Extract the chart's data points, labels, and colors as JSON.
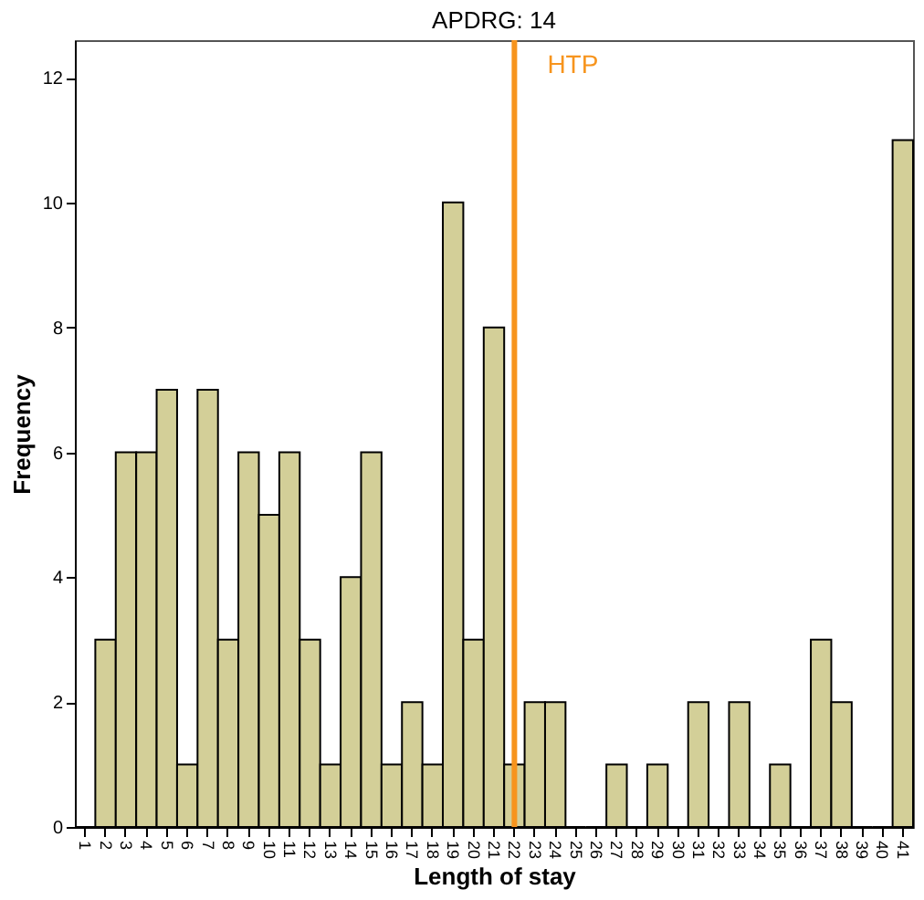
{
  "chart_data": {
    "type": "bar",
    "title": "APDRG: 14",
    "xlabel": "Length of stay",
    "ylabel": "Frequency",
    "categories": [
      "1",
      "2",
      "3",
      "4",
      "5",
      "6",
      "7",
      "8",
      "9",
      "10",
      "11",
      "12",
      "13",
      "14",
      "15",
      "16",
      "17",
      "18",
      "19",
      "20",
      "21",
      "22",
      "23",
      "24",
      "25",
      "26",
      "27",
      "28",
      "29",
      "30",
      "31",
      "32",
      "33",
      "34",
      "35",
      "36",
      "37",
      "38",
      "39",
      "40",
      "41"
    ],
    "series": [
      {
        "color": "#d3cf98",
        "values": [
          0,
          3,
          6,
          6,
          7,
          1,
          7,
          3,
          6,
          5,
          6,
          3,
          1,
          4,
          6,
          1,
          2,
          1,
          10,
          3,
          8,
          1,
          2,
          2,
          0,
          0,
          1,
          0,
          1,
          0,
          2,
          0,
          2,
          0,
          1,
          0,
          3,
          2,
          0,
          0,
          11
        ]
      }
    ],
    "ylim": [
      0,
      12.6
    ],
    "yticks": [
      0,
      2,
      4,
      6,
      8,
      10,
      12
    ],
    "grid": false,
    "legend": false,
    "ref_lines": [
      {
        "axis": "x",
        "value": "22",
        "label": "HTP",
        "color": "#f7941d"
      }
    ]
  }
}
